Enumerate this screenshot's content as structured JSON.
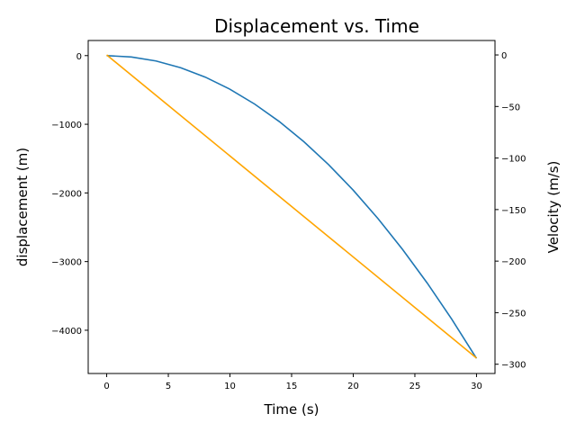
{
  "chart_data": {
    "type": "line",
    "title": "Displacement vs. Time",
    "xlabel": "Time (s)",
    "ylabel_left": "displacement (m)",
    "ylabel_right": "Velocity (m/s)",
    "xlim": [
      -1.5,
      31.5
    ],
    "ylim_left": [
      -4630,
      220
    ],
    "ylim_right": [
      -309,
      14
    ],
    "x_ticks": [
      0,
      5,
      10,
      15,
      20,
      25,
      30
    ],
    "y_left_ticks": [
      0,
      -1000,
      -2000,
      -3000,
      -4000
    ],
    "y_right_ticks": [
      0,
      -50,
      -100,
      -150,
      -200,
      -250,
      -300
    ],
    "grid": false,
    "series": [
      {
        "axis": "left",
        "color": "#1f77b4",
        "x": [
          0,
          2,
          4,
          6,
          8,
          10,
          12,
          14,
          16,
          18,
          20,
          22,
          24,
          26,
          28,
          30
        ],
        "y": [
          0,
          -19.6,
          -78.4,
          -176.4,
          -313.6,
          -490,
          -705.6,
          -960.4,
          -1254.4,
          -1587.6,
          -1960,
          -2371.6,
          -2822.4,
          -3312.4,
          -3841.6,
          -4410
        ]
      },
      {
        "axis": "right",
        "color": "#ffa500",
        "x": [
          0,
          30
        ],
        "y": [
          0,
          -294
        ]
      }
    ]
  }
}
